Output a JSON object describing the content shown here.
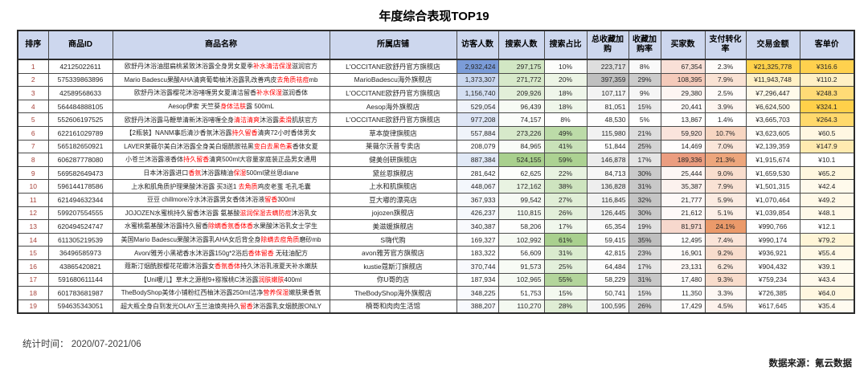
{
  "chart_data": {
    "type": "table",
    "title": "年度综合表现TOP19",
    "columns": [
      "排序",
      "商品ID",
      "商品名称",
      "所属店铺",
      "访客人数",
      "搜索人数",
      "搜索占比",
      "总收藏加购",
      "收藏加购率",
      "买家数",
      "支付转化率",
      "交易金额",
      "客单价"
    ],
    "rows": [
      {
        "rank": "1",
        "id": "42125022611",
        "name": [
          {
            "t": "欧舒丹沐浴油甜扁桃紧致沐浴露全身男女夏季",
            "r": false
          },
          {
            "t": "补水清洁保湿",
            "r": true
          },
          {
            "t": "滋润官方",
            "r": false
          }
        ],
        "shop": "L'OCCITANE欧舒丹官方旗舰店",
        "metrics": [
          "2,932,424",
          "297,175",
          "10%",
          "223,717",
          "8%",
          "67,354",
          "2.3%",
          "¥21,325,778",
          "¥316.6"
        ]
      },
      {
        "rank": "2",
        "id": "575339863896",
        "name": [
          {
            "t": "Mario Badescu果酸AHA清爽葡萄柚沐浴露乳改善鸡皮",
            "r": false
          },
          {
            "t": "去角质祛痘",
            "r": true
          },
          {
            "t": "mb",
            "r": false
          }
        ],
        "shop": "MarioBadescu海外旗舰店",
        "metrics": [
          "1,373,307",
          "271,772",
          "20%",
          "397,359",
          "29%",
          "108,395",
          "7.9%",
          "¥11,943,748",
          "¥110.2"
        ]
      },
      {
        "rank": "3",
        "id": "42589568633",
        "name": [
          {
            "t": "欧舒丹沐浴露樱花沐浴啫喱男女夏清洁留香",
            "r": false
          },
          {
            "t": "补水保湿",
            "r": true
          },
          {
            "t": "滋润香体",
            "r": false
          }
        ],
        "shop": "L'OCCITANE欧舒丹官方旗舰店",
        "metrics": [
          "1,156,740",
          "209,926",
          "18%",
          "107,117",
          "9%",
          "29,380",
          "2.5%",
          "¥7,296,447",
          "¥248.3"
        ]
      },
      {
        "rank": "4",
        "id": "564484888105",
        "name": [
          {
            "t": "Aesop伊索 天竺葵",
            "r": false
          },
          {
            "t": "身体洁肤",
            "r": true
          },
          {
            "t": "露 500mL",
            "r": false
          }
        ],
        "shop": "Aesop海外旗舰店",
        "metrics": [
          "529,054",
          "96,439",
          "18%",
          "81,051",
          "15%",
          "20,441",
          "3.9%",
          "¥6,624,500",
          "¥324.1"
        ]
      },
      {
        "rank": "5",
        "id": "552606197525",
        "name": [
          {
            "t": "欧舒丹沐浴露马鞭草清新沐浴啫喱全身",
            "r": false
          },
          {
            "t": "清洁清爽",
            "r": true
          },
          {
            "t": "沐浴露",
            "r": false
          },
          {
            "t": "柔滑",
            "r": true
          },
          {
            "t": "肌肤官方",
            "r": false
          }
        ],
        "shop": "L'OCCITANE欧舒丹官方旗舰店",
        "metrics": [
          "977,208",
          "74,157",
          "8%",
          "48,530",
          "5%",
          "13,867",
          "1.4%",
          "¥3,665,703",
          "¥264.3"
        ]
      },
      {
        "rank": "6",
        "id": "622161029789",
        "name": [
          {
            "t": "【2瓶装】NANM事后清沙香氛沐浴露",
            "r": false
          },
          {
            "t": "持久留香",
            "r": true
          },
          {
            "t": "清爽72小时香体男女",
            "r": false
          }
        ],
        "shop": "草本旋律旗舰店",
        "metrics": [
          "557,884",
          "273,226",
          "49%",
          "115,980",
          "21%",
          "59,920",
          "10.7%",
          "¥3,623,605",
          "¥60.5"
        ]
      },
      {
        "rank": "7",
        "id": "565182650921",
        "name": [
          {
            "t": "LAVER莱薇尔美白沐浴露全身美白烟酰胺祛黑",
            "r": false
          },
          {
            "t": "变白去黑色素",
            "r": true
          },
          {
            "t": "香体女夏",
            "r": false
          }
        ],
        "shop": "莱薇尔沃普专卖店",
        "metrics": [
          "208,079",
          "84,965",
          "41%",
          "51,844",
          "25%",
          "14,469",
          "7.0%",
          "¥2,139,359",
          "¥147.9"
        ]
      },
      {
        "rank": "8",
        "id": "606287778080",
        "name": [
          {
            "t": "小苍兰沐浴露液香体",
            "r": false
          },
          {
            "t": "持久留香",
            "r": true
          },
          {
            "t": "清爽500ml大容量家庭装正品男女通用",
            "r": false
          }
        ],
        "shop": "健美创研旗舰店",
        "metrics": [
          "887,384",
          "524,155",
          "59%",
          "146,878",
          "17%",
          "189,336",
          "21.3%",
          "¥1,915,674",
          "¥10.1"
        ]
      },
      {
        "rank": "9",
        "id": "569582649473",
        "name": [
          {
            "t": "日本沐浴露进口",
            "r": false
          },
          {
            "t": "香氛",
            "r": true
          },
          {
            "t": "沐浴露精油",
            "r": false
          },
          {
            "t": "保湿",
            "r": true
          },
          {
            "t": "500ml黛丝恩diane",
            "r": false
          }
        ],
        "shop": "黛丝恩旗舰店",
        "metrics": [
          "281,642",
          "62,625",
          "22%",
          "84,713",
          "30%",
          "25,444",
          "9.0%",
          "¥1,659,530",
          "¥65.2"
        ]
      },
      {
        "rank": "10",
        "id": "596144178586",
        "name": [
          {
            "t": "上水和肌角质护理果酸沐浴露 买3送1 ",
            "r": false
          },
          {
            "t": "去角质",
            "r": true
          },
          {
            "t": "鸡皮老茧 毛孔毛囊",
            "r": false
          }
        ],
        "shop": "上水和肌旗舰店",
        "metrics": [
          "448,067",
          "172,162",
          "38%",
          "136,828",
          "31%",
          "35,387",
          "7.9%",
          "¥1,501,315",
          "¥42.4"
        ]
      },
      {
        "rank": "11",
        "id": "621494632344",
        "name": [
          {
            "t": "豆豆 chillmore冷水沐浴露男女香体沐浴液",
            "r": false
          },
          {
            "t": "留香",
            "r": true
          },
          {
            "t": "300ml",
            "r": false
          }
        ],
        "shop": "豆大嘟的漂亮店",
        "metrics": [
          "367,933",
          "99,542",
          "27%",
          "116,845",
          "32%",
          "21,777",
          "5.9%",
          "¥1,070,464",
          "¥49.2"
        ]
      },
      {
        "rank": "12",
        "id": "599207554555",
        "name": [
          {
            "t": "JOJOZEN水蜜桃持久留香沐浴露 氨基酸",
            "r": false
          },
          {
            "t": "滋润保湿去螨防痘",
            "r": true
          },
          {
            "t": "沐浴乳女",
            "r": false
          }
        ],
        "shop": "jojozen旗舰店",
        "metrics": [
          "426,237",
          "110,815",
          "26%",
          "126,445",
          "30%",
          "21,612",
          "5.1%",
          "¥1,039,854",
          "¥48.1"
        ]
      },
      {
        "rank": "13",
        "id": "620494524747",
        "name": [
          {
            "t": "水蜜桃氨基酸沐浴露持久留香",
            "r": false
          },
          {
            "t": "除螨香氛香体香",
            "r": true
          },
          {
            "t": "水果酸沐浴乳女士学生",
            "r": false
          }
        ],
        "shop": "美滋媛旗舰店",
        "metrics": [
          "340,387",
          "58,206",
          "17%",
          "65,354",
          "19%",
          "81,971",
          "24.1%",
          "¥990,766",
          "¥12.1"
        ]
      },
      {
        "rank": "14",
        "id": "611305219539",
        "name": [
          {
            "t": "美国Mario Badescu果酸沐浴露乳AHA女后背全身",
            "r": false
          },
          {
            "t": "除螨去痘角质",
            "r": true
          },
          {
            "t": "磨砂mb",
            "r": false
          }
        ],
        "shop": "S嗨代购",
        "metrics": [
          "169,327",
          "102,992",
          "61%",
          "59,415",
          "35%",
          "12,495",
          "7.4%",
          "¥990,174",
          "¥79.2"
        ]
      },
      {
        "rank": "15",
        "id": "36496585973",
        "name": [
          {
            "t": "Avon/雅芳小黑裙香水沐浴露150g*2浴后",
            "r": false
          },
          {
            "t": "香体留香",
            "r": true
          },
          {
            "t": " 无硅油配方",
            "r": false
          }
        ],
        "shop": "avon雅芳官方旗舰店",
        "metrics": [
          "183,322",
          "56,609",
          "31%",
          "42,815",
          "23%",
          "16,901",
          "9.2%",
          "¥936,921",
          "¥55.4"
        ]
      },
      {
        "rank": "16",
        "id": "43865420821",
        "name": [
          {
            "t": "蔻斯汀烟酰胺樱花花瓣沐浴露女",
            "r": false
          },
          {
            "t": "香氛香体",
            "r": true
          },
          {
            "t": "持久沐浴乳液夏天补水嫩肤",
            "r": false
          }
        ],
        "shop": "kustie蔻斯汀旗舰店",
        "metrics": [
          "370,744",
          "91,573",
          "25%",
          "64,484",
          "17%",
          "23,131",
          "6.2%",
          "¥904,432",
          "¥39.1"
        ]
      },
      {
        "rank": "17",
        "id": "591680611144",
        "name": [
          {
            "t": "【Uni暖儿】草木之源柑9+猕猴桃C沐浴露",
            "r": false
          },
          {
            "t": "润肤嫩肤",
            "r": true
          },
          {
            "t": "400ml",
            "r": false
          }
        ],
        "shop": "你U哥的店",
        "metrics": [
          "187,934",
          "102,965",
          "55%",
          "58,229",
          "31%",
          "17,480",
          "9.3%",
          "¥759,234",
          "¥43.4"
        ]
      },
      {
        "rank": "18",
        "id": "601783681987",
        "name": [
          {
            "t": "TheBodyShop美体小铺粉红西柚沐浴露250ml洁净",
            "r": false
          },
          {
            "t": "营养保湿",
            "r": true
          },
          {
            "t": "嫩肤果香氛",
            "r": false
          }
        ],
        "shop": "TheBodyShop海外旗舰店",
        "metrics": [
          "348,225",
          "51,753",
          "15%",
          "50,741",
          "15%",
          "11,350",
          "3.3%",
          "¥726,385",
          "¥64.0"
        ]
      },
      {
        "rank": "19",
        "id": "594635343051",
        "name": [
          {
            "t": "超大瓶全身白到发光OLAY玉兰油焕亮持久",
            "r": false
          },
          {
            "t": "留香",
            "r": true
          },
          {
            "t": "沐浴露乳女烟酰胺ONLY",
            "r": false
          }
        ],
        "shop": "楠哥和肉肉生活馆",
        "metrics": [
          "388,207",
          "110,270",
          "28%",
          "100,595",
          "26%",
          "17,429",
          "4.5%",
          "¥617,645",
          "¥35.4"
        ]
      }
    ]
  },
  "footer": {
    "stat_time_label": "统计时间：",
    "stat_time_value": "2020/07-2021/06",
    "source": "数据来源：氪云数据"
  },
  "colors": {
    "header_bg": "#cdd7ee",
    "highlight_red": "#ff0000",
    "rank_text": "#a8423a",
    "scales": [
      {
        "col": 0,
        "color": "#7b9cd8",
        "gamma": 1.1
      },
      {
        "col": 1,
        "color": "#a9d08e",
        "gamma": 1.0
      },
      {
        "col": 2,
        "color": "#a9d08e",
        "gamma": 1.0
      },
      {
        "col": 3,
        "color": "#bfbfbf",
        "gamma": 1.0
      },
      {
        "col": 4,
        "color": "#bfbfbf",
        "gamma": 1.0
      },
      {
        "col": 5,
        "color": "#eb9d80",
        "gamma": 1.0
      },
      {
        "col": 6,
        "color": "#eb9a6a",
        "gamma": 1.0
      },
      {
        "col": 7,
        "color": "#ffd24b",
        "gamma": 1.9
      },
      {
        "col": 8,
        "color": "#ffd04a",
        "gamma": 1.0
      }
    ]
  }
}
